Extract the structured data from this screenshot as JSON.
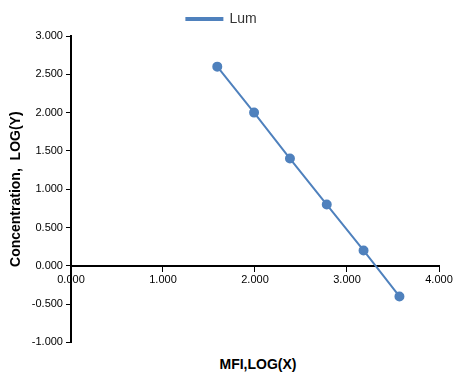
{
  "chart_data": {
    "type": "line",
    "x_label": "MFI,LOG(X)",
    "y_label": "Concentration,  LOG(Y)",
    "series": [
      {
        "name": "Lum",
        "color": "#4f81bd",
        "marker": "circle",
        "x": [
          1.59,
          1.99,
          2.38,
          2.78,
          3.18,
          3.57
        ],
        "values": [
          2.6,
          2.0,
          1.4,
          0.8,
          0.2,
          -0.4
        ]
      }
    ],
    "xlim": [
      0,
      4
    ],
    "xticks": [
      {
        "value": 0,
        "label": "0.000"
      },
      {
        "value": 1,
        "label": "1.000"
      },
      {
        "value": 2,
        "label": "2.000"
      },
      {
        "value": 3,
        "label": "3.000"
      },
      {
        "value": 4,
        "label": "4.000"
      }
    ],
    "ylim": [
      -1,
      3
    ],
    "yticks": [
      {
        "value": -1,
        "label": "-1.000"
      },
      {
        "value": -0.5,
        "label": "-0.500"
      },
      {
        "value": 0,
        "label": "0.000"
      },
      {
        "value": 0.5,
        "label": "0.500"
      },
      {
        "value": 1,
        "label": "1.000"
      },
      {
        "value": 1.5,
        "label": "1.500"
      },
      {
        "value": 2,
        "label": "2.000"
      },
      {
        "value": 2.5,
        "label": "2.500"
      },
      {
        "value": 3,
        "label": "3.000"
      }
    ],
    "grid": false,
    "legend": "top"
  }
}
